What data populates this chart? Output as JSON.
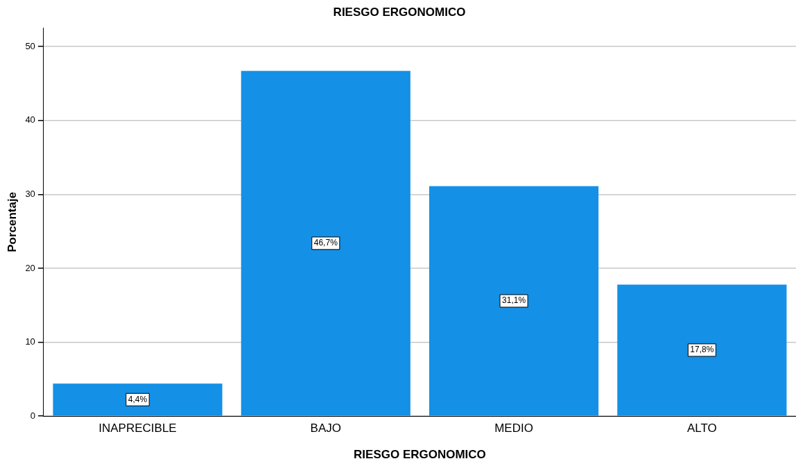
{
  "chart_data": {
    "type": "bar",
    "title": "RIESGO ERGONOMICO",
    "xlabel": "RIESGO ERGONOMICO",
    "ylabel": "Porcentaje",
    "categories": [
      "INAPRECIBLE",
      "BAJO",
      "MEDIO",
      "ALTO"
    ],
    "values": [
      4.4,
      46.7,
      31.1,
      17.8
    ],
    "value_labels": [
      "4,4%",
      "46,7%",
      "31,1%",
      "17,8%"
    ],
    "color": "#1490e6",
    "ylim": [
      0,
      52.5
    ],
    "yticks": [
      0,
      10,
      20,
      30,
      40,
      50
    ],
    "grid": "y"
  }
}
